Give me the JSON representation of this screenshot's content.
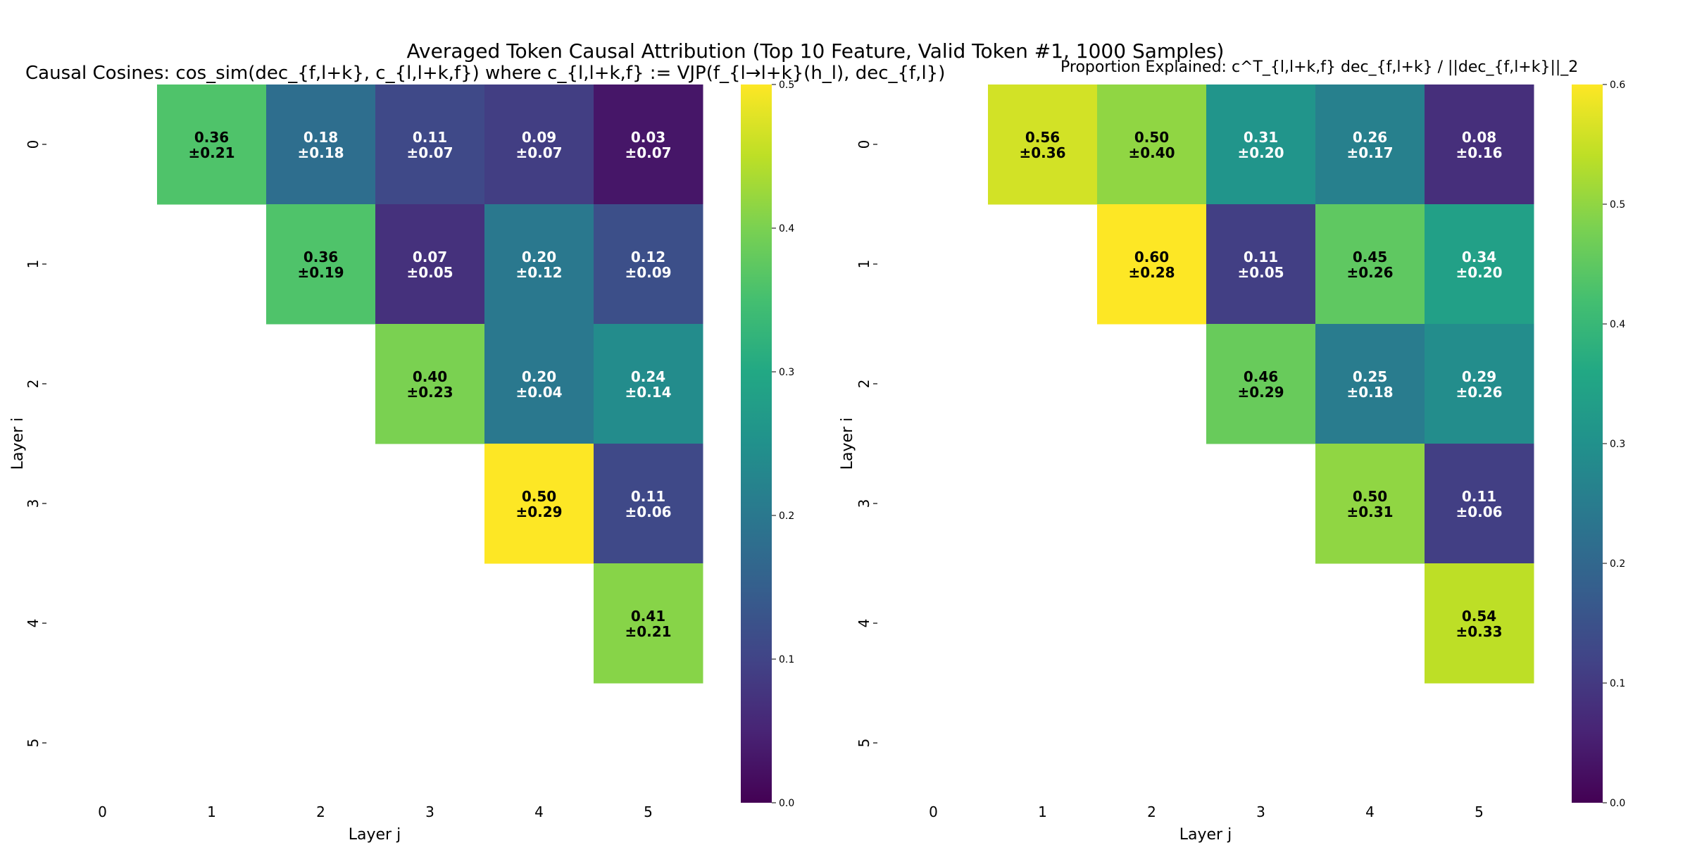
{
  "figure": {
    "suptitle": "Averaged Token Causal Attribution (Top 10 Feature, Valid Token #1, 1000 Samples)"
  },
  "chart_data": [
    {
      "type": "heatmap",
      "title": "Causal Cosines: cos_sim(dec_{f,l+k}, c_{l,l+k,f}) where c_{l,l+k,f} := VJP(f_{l→l+k}(h_l), dec_{f,l})",
      "xlabel": "Layer j",
      "ylabel": "Layer i",
      "x_ticks": [
        "0",
        "1",
        "2",
        "3",
        "4",
        "5"
      ],
      "y_ticks": [
        "0",
        "1",
        "2",
        "3",
        "4",
        "5"
      ],
      "colormap": "viridis",
      "vmin": 0.0,
      "vmax": 0.5,
      "colorbar_ticks": [
        "0.0",
        "0.1",
        "0.2",
        "0.3",
        "0.4",
        "0.5"
      ],
      "cells": [
        {
          "i": 0,
          "j": 1,
          "mean": "0.36",
          "std": "±0.21"
        },
        {
          "i": 0,
          "j": 2,
          "mean": "0.18",
          "std": "±0.18"
        },
        {
          "i": 0,
          "j": 3,
          "mean": "0.11",
          "std": "±0.07"
        },
        {
          "i": 0,
          "j": 4,
          "mean": "0.09",
          "std": "±0.07"
        },
        {
          "i": 0,
          "j": 5,
          "mean": "0.03",
          "std": "±0.07"
        },
        {
          "i": 1,
          "j": 2,
          "mean": "0.36",
          "std": "±0.19"
        },
        {
          "i": 1,
          "j": 3,
          "mean": "0.07",
          "std": "±0.05"
        },
        {
          "i": 1,
          "j": 4,
          "mean": "0.20",
          "std": "±0.12"
        },
        {
          "i": 1,
          "j": 5,
          "mean": "0.12",
          "std": "±0.09"
        },
        {
          "i": 2,
          "j": 3,
          "mean": "0.40",
          "std": "±0.23"
        },
        {
          "i": 2,
          "j": 4,
          "mean": "0.20",
          "std": "±0.04"
        },
        {
          "i": 2,
          "j": 5,
          "mean": "0.24",
          "std": "±0.14"
        },
        {
          "i": 3,
          "j": 4,
          "mean": "0.50",
          "std": "±0.29"
        },
        {
          "i": 3,
          "j": 5,
          "mean": "0.11",
          "std": "±0.06"
        },
        {
          "i": 4,
          "j": 5,
          "mean": "0.41",
          "std": "±0.21"
        }
      ]
    },
    {
      "type": "heatmap",
      "title": "Proportion Explained: c^T_{l,l+k,f} dec_{f,l+k} / ||dec_{f,l+k}||_2",
      "xlabel": "Layer j",
      "ylabel": "Layer i",
      "x_ticks": [
        "0",
        "1",
        "2",
        "3",
        "4",
        "5"
      ],
      "y_ticks": [
        "0",
        "1",
        "2",
        "3",
        "4",
        "5"
      ],
      "colormap": "viridis",
      "vmin": 0.0,
      "vmax": 0.6,
      "colorbar_ticks": [
        "0.0",
        "0.1",
        "0.2",
        "0.3",
        "0.4",
        "0.5",
        "0.6"
      ],
      "cells": [
        {
          "i": 0,
          "j": 1,
          "mean": "0.56",
          "std": "±0.36"
        },
        {
          "i": 0,
          "j": 2,
          "mean": "0.50",
          "std": "±0.40"
        },
        {
          "i": 0,
          "j": 3,
          "mean": "0.31",
          "std": "±0.20"
        },
        {
          "i": 0,
          "j": 4,
          "mean": "0.26",
          "std": "±0.17"
        },
        {
          "i": 0,
          "j": 5,
          "mean": "0.08",
          "std": "±0.16"
        },
        {
          "i": 1,
          "j": 2,
          "mean": "0.60",
          "std": "±0.28"
        },
        {
          "i": 1,
          "j": 3,
          "mean": "0.11",
          "std": "±0.05"
        },
        {
          "i": 1,
          "j": 4,
          "mean": "0.45",
          "std": "±0.26"
        },
        {
          "i": 1,
          "j": 5,
          "mean": "0.34",
          "std": "±0.20"
        },
        {
          "i": 2,
          "j": 3,
          "mean": "0.46",
          "std": "±0.29"
        },
        {
          "i": 2,
          "j": 4,
          "mean": "0.25",
          "std": "±0.18"
        },
        {
          "i": 2,
          "j": 5,
          "mean": "0.29",
          "std": "±0.26"
        },
        {
          "i": 3,
          "j": 4,
          "mean": "0.50",
          "std": "±0.31"
        },
        {
          "i": 3,
          "j": 5,
          "mean": "0.11",
          "std": "±0.06"
        },
        {
          "i": 4,
          "j": 5,
          "mean": "0.54",
          "std": "±0.33"
        }
      ]
    }
  ]
}
